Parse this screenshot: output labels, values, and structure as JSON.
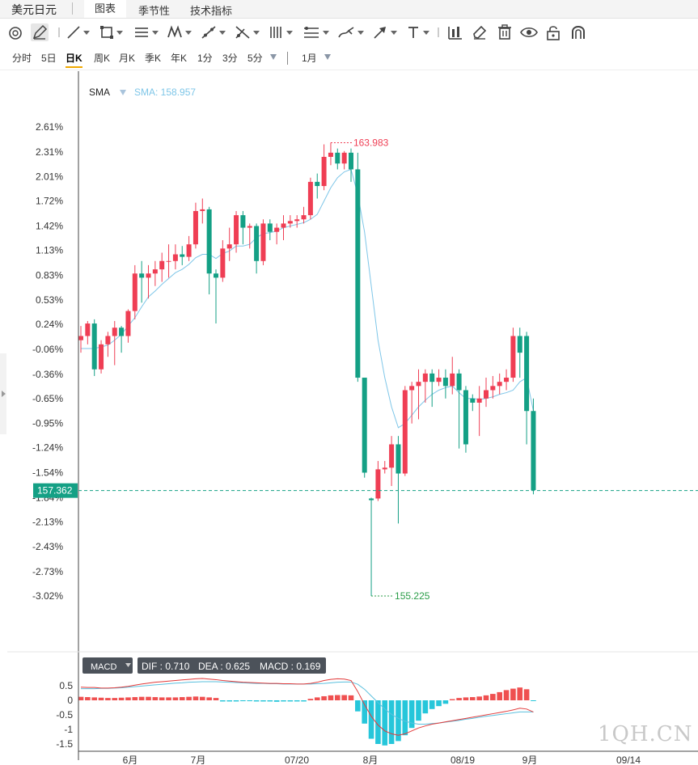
{
  "app": {
    "title": "美元日元",
    "tabs": [
      {
        "label": "图表",
        "active": true
      },
      {
        "label": "季节性",
        "active": false
      },
      {
        "label": "技术指标",
        "active": false
      }
    ]
  },
  "toolbar": {
    "tools": [
      "magnet-icon",
      "pencil-icon",
      "trendline-icon",
      "rectangle-icon",
      "parallel-channel-icon",
      "pattern-icon",
      "fib-icon",
      "gann-icon",
      "pitchfork-icon",
      "range-icon",
      "brush-icon",
      "arrow-icon",
      "text-icon",
      "bar-chart-icon",
      "eraser-icon",
      "trash-icon",
      "eye-icon",
      "lock-icon",
      "magnet-u-icon"
    ]
  },
  "periods": {
    "items": [
      "分时",
      "5日",
      "日K",
      "周K",
      "月K",
      "季K",
      "年K",
      "1分",
      "3分",
      "5分"
    ],
    "active": "日K",
    "range": "1月"
  },
  "indicator": {
    "sma_label": "SMA",
    "sma_value_text": "SMA: 158.957"
  },
  "markers": {
    "high": "163.983",
    "low": "155.225",
    "last_price": "157.362"
  },
  "macd": {
    "button": "MACD",
    "dif": "DIF : 0.710",
    "dea": "DEA : 0.625",
    "macd": "MACD : 0.169"
  },
  "watermark": "1QH.CN",
  "colors": {
    "up": "#ef3e54",
    "down": "#14a085",
    "sma": "#7ec6e8",
    "dea_line": "#5bc0de",
    "dif_line": "#e23b3b",
    "macd_neg": "#26c6da",
    "macd_pos": "#ef5050",
    "price_tag": "#14a085"
  },
  "chart_data": [
    {
      "type": "candlestick",
      "y_axis_labels": [
        "2.61%",
        "2.31%",
        "2.01%",
        "1.72%",
        "1.42%",
        "1.13%",
        "0.83%",
        "0.53%",
        "0.24%",
        "-0.06%",
        "-0.36%",
        "-0.65%",
        "-0.95%",
        "-1.24%",
        "-1.54%",
        "-1.84%",
        "-2.13%",
        "-2.43%",
        "-2.73%",
        "-3.02%"
      ],
      "y_axis_percent": [
        2.61,
        2.31,
        2.01,
        1.72,
        1.42,
        1.13,
        0.83,
        0.53,
        0.24,
        -0.06,
        -0.36,
        -0.65,
        -0.95,
        -1.24,
        -1.54,
        -1.84,
        -2.13,
        -2.43,
        -2.73,
        -3.02
      ],
      "ylim_percent": [
        -3.3,
        2.8
      ],
      "x_axis_labels": [
        "6月",
        "7月",
        "07/20",
        "8月",
        "08/19",
        "9月",
        "09/14"
      ],
      "ohlc_percent": [
        [
          0.05,
          0.1,
          0.22,
          -0.1
        ],
        [
          0.1,
          0.25,
          0.28,
          0.0
        ],
        [
          0.25,
          -0.3,
          0.3,
          -0.38
        ],
        [
          -0.3,
          0.0,
          0.05,
          -0.35
        ],
        [
          0.0,
          0.1,
          0.15,
          -0.15
        ],
        [
          0.1,
          0.2,
          0.28,
          -0.25
        ],
        [
          0.2,
          0.1,
          0.22,
          -0.1
        ],
        [
          0.1,
          0.4,
          0.42,
          0.02
        ],
        [
          0.4,
          0.85,
          0.95,
          0.3
        ],
        [
          0.85,
          0.8,
          1.0,
          0.5
        ],
        [
          0.8,
          0.85,
          0.95,
          0.55
        ],
        [
          0.85,
          0.9,
          1.0,
          0.7
        ],
        [
          0.9,
          1.0,
          1.1,
          0.75
        ],
        [
          1.0,
          1.0,
          1.2,
          0.8
        ],
        [
          1.0,
          1.08,
          1.2,
          0.9
        ],
        [
          1.08,
          1.05,
          1.18,
          0.95
        ],
        [
          1.05,
          1.2,
          1.3,
          1.0
        ],
        [
          1.2,
          1.6,
          1.7,
          1.15
        ],
        [
          1.6,
          1.62,
          1.75,
          1.45
        ],
        [
          1.62,
          0.85,
          1.65,
          0.6
        ],
        [
          0.85,
          0.8,
          0.9,
          0.25
        ],
        [
          0.8,
          1.15,
          1.25,
          0.75
        ],
        [
          1.15,
          1.2,
          1.4,
          1.0
        ],
        [
          1.2,
          1.55,
          1.6,
          1.1
        ],
        [
          1.55,
          1.4,
          1.6,
          1.2
        ],
        [
          1.4,
          1.42,
          1.45,
          1.15
        ],
        [
          1.42,
          1.0,
          1.45,
          0.85
        ],
        [
          1.0,
          1.45,
          1.5,
          0.95
        ],
        [
          1.45,
          1.35,
          1.5,
          1.25
        ],
        [
          1.35,
          1.4,
          1.45,
          1.2
        ],
        [
          1.4,
          1.45,
          1.55,
          1.25
        ],
        [
          1.45,
          1.48,
          1.55,
          1.4
        ],
        [
          1.48,
          1.5,
          1.55,
          1.4
        ],
        [
          1.5,
          1.55,
          1.65,
          1.45
        ],
        [
          1.55,
          1.95,
          2.0,
          1.5
        ],
        [
          1.95,
          1.9,
          2.05,
          1.75
        ],
        [
          1.9,
          2.25,
          2.4,
          1.85
        ],
        [
          2.25,
          2.3,
          2.42,
          2.15
        ],
        [
          2.3,
          2.17,
          2.35,
          2.1
        ],
        [
          2.17,
          2.3,
          2.32,
          2.1
        ],
        [
          2.3,
          2.1,
          2.35,
          1.95
        ],
        [
          2.1,
          -0.4,
          2.3,
          -0.45
        ],
        [
          -0.4,
          -1.54,
          -1.0,
          -1.6
        ],
        [
          -1.85,
          -1.87,
          -1.84,
          -3.02
        ],
        [
          -1.85,
          -1.5,
          -1.4,
          -1.88
        ],
        [
          -1.5,
          -1.48,
          -1.4,
          -1.55
        ],
        [
          -1.48,
          -1.2,
          -1.1,
          -1.7
        ],
        [
          -1.2,
          -1.55,
          -1.1,
          -2.15
        ],
        [
          -1.55,
          -0.55,
          -0.5,
          -1.58
        ],
        [
          -0.55,
          -0.5,
          -0.45,
          -0.95
        ],
        [
          -0.5,
          -0.45,
          -0.3,
          -0.9
        ],
        [
          -0.45,
          -0.35,
          -0.3,
          -0.7
        ],
        [
          -0.35,
          -0.45,
          -0.3,
          -0.75
        ],
        [
          -0.45,
          -0.4,
          -0.3,
          -0.5
        ],
        [
          -0.4,
          -0.5,
          -0.3,
          -0.65
        ],
        [
          -0.5,
          -0.35,
          -0.15,
          -0.6
        ],
        [
          -0.35,
          -0.55,
          -0.3,
          -1.25
        ],
        [
          -0.55,
          -1.2,
          -0.5,
          -1.3
        ],
        [
          -0.65,
          -0.7,
          -0.6,
          -0.8
        ],
        [
          -0.7,
          -0.65,
          -0.5,
          -1.1
        ],
        [
          -0.65,
          -0.55,
          -0.4,
          -0.75
        ],
        [
          -0.55,
          -0.5,
          -0.38,
          -0.65
        ],
        [
          -0.5,
          -0.45,
          -0.35,
          -0.6
        ],
        [
          -0.45,
          -0.4,
          -0.3,
          -0.55
        ],
        [
          -0.4,
          0.1,
          0.2,
          -0.45
        ],
        [
          0.1,
          -0.1,
          0.2,
          -0.4
        ],
        [
          0.1,
          -0.8,
          0.15,
          -1.2
        ],
        [
          -0.8,
          -1.75,
          -0.65,
          -1.8
        ]
      ],
      "sma_percent": [
        -0.05,
        -0.05,
        -0.05,
        -0.03,
        -0.01,
        0.05,
        0.12,
        0.22,
        0.32,
        0.45,
        0.57,
        0.64,
        0.72,
        0.79,
        0.86,
        0.9,
        0.96,
        1.04,
        1.08,
        1.08,
        1.03,
        1.09,
        1.12,
        1.18,
        1.18,
        1.2,
        1.28,
        1.33,
        1.34,
        1.36,
        1.4,
        1.42,
        1.44,
        1.46,
        1.5,
        1.56,
        1.72,
        1.88,
        2.0,
        2.07,
        2.1,
        1.8,
        1.35,
        0.7,
        0.05,
        -0.4,
        -0.75,
        -1.0,
        -0.95,
        -0.85,
        -0.75,
        -0.67,
        -0.6,
        -0.55,
        -0.52,
        -0.5,
        -0.58,
        -0.65,
        -0.65,
        -0.66,
        -0.65,
        -0.63,
        -0.6,
        -0.58,
        -0.55,
        -0.45,
        -0.4,
        -0.8
      ]
    },
    {
      "type": "bar_line",
      "y_axis_labels": [
        "0.5",
        "0",
        "-0.5",
        "-1",
        "-1.5"
      ],
      "y_axis_values": [
        0.5,
        0,
        -0.5,
        -1,
        -1.5
      ],
      "ylim": [
        -1.7,
        0.9
      ],
      "series": [
        {
          "name": "MACD",
          "values": [
            0.12,
            0.11,
            0.1,
            0.09,
            0.08,
            0.08,
            0.09,
            0.1,
            0.11,
            0.12,
            0.12,
            0.11,
            0.1,
            0.1,
            0.1,
            0.11,
            0.12,
            0.13,
            0.12,
            0.1,
            0.08,
            -0.04,
            -0.04,
            -0.04,
            -0.03,
            -0.03,
            -0.04,
            -0.04,
            -0.04,
            -0.05,
            -0.04,
            -0.04,
            -0.04,
            -0.04,
            0.05,
            0.1,
            0.14,
            0.17,
            0.18,
            0.18,
            0.17,
            -0.38,
            -0.8,
            -1.32,
            -1.5,
            -1.55,
            -1.5,
            -1.4,
            -1.2,
            -0.95,
            -0.7,
            -0.45,
            -0.3,
            -0.2,
            -0.12,
            0.04,
            0.08,
            0.1,
            0.11,
            0.13,
            0.17,
            0.22,
            0.28,
            0.35,
            0.4,
            0.44,
            0.38,
            -0.02
          ]
        },
        {
          "name": "DIF",
          "values": [
            0.45,
            0.44,
            0.44,
            0.42,
            0.42,
            0.43,
            0.45,
            0.48,
            0.52,
            0.56,
            0.59,
            0.62,
            0.64,
            0.66,
            0.68,
            0.7,
            0.72,
            0.74,
            0.75,
            0.73,
            0.71,
            0.68,
            0.66,
            0.64,
            0.62,
            0.61,
            0.6,
            0.59,
            0.58,
            0.58,
            0.57,
            0.57,
            0.56,
            0.56,
            0.58,
            0.62,
            0.68,
            0.72,
            0.74,
            0.73,
            0.68,
            0.3,
            -0.15,
            -0.55,
            -0.85,
            -1.05,
            -1.15,
            -1.2,
            -1.15,
            -1.05,
            -0.95,
            -0.88,
            -0.82,
            -0.78,
            -0.74,
            -0.7,
            -0.66,
            -0.62,
            -0.58,
            -0.54,
            -0.5,
            -0.46,
            -0.42,
            -0.38,
            -0.33,
            -0.27,
            -0.3,
            -0.4
          ]
        },
        {
          "name": "DEA",
          "values": [
            0.4,
            0.4,
            0.4,
            0.41,
            0.41,
            0.42,
            0.43,
            0.45,
            0.47,
            0.49,
            0.51,
            0.53,
            0.55,
            0.57,
            0.59,
            0.6,
            0.62,
            0.63,
            0.64,
            0.64,
            0.64,
            0.63,
            0.62,
            0.61,
            0.6,
            0.59,
            0.58,
            0.58,
            0.57,
            0.57,
            0.56,
            0.56,
            0.56,
            0.56,
            0.56,
            0.57,
            0.58,
            0.6,
            0.62,
            0.63,
            0.63,
            0.55,
            0.38,
            0.15,
            -0.08,
            -0.3,
            -0.48,
            -0.62,
            -0.72,
            -0.78,
            -0.82,
            -0.82,
            -0.8,
            -0.78,
            -0.75,
            -0.72,
            -0.69,
            -0.65,
            -0.62,
            -0.58,
            -0.55,
            -0.52,
            -0.49,
            -0.46,
            -0.43,
            -0.4,
            -0.4,
            -0.4
          ]
        }
      ]
    }
  ]
}
